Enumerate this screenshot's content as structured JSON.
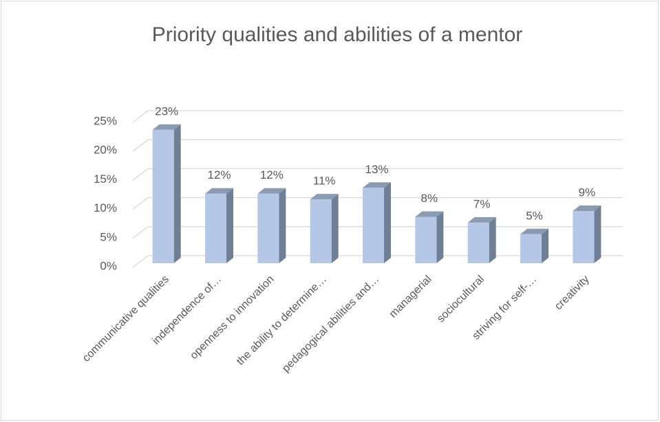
{
  "chart_data": {
    "type": "bar",
    "title": "Priority qualities and abilities of a mentor",
    "categories": [
      "communicative qualities",
      "independence of…",
      "openness to innovation",
      "the ability to determine…",
      "pedagogical abilities and…",
      "managerial",
      "sociocultural",
      "striving for self-…",
      "creativity"
    ],
    "values": [
      23,
      12,
      12,
      11,
      13,
      8,
      7,
      5,
      9
    ],
    "value_labels": [
      "23%",
      "12%",
      "12%",
      "11%",
      "13%",
      "8%",
      "7%",
      "5%",
      "9%"
    ],
    "color": "#b4c7e7",
    "ylim": [
      0,
      25
    ],
    "yticks": [
      {
        "value": 0,
        "label": "0%"
      },
      {
        "value": 5,
        "label": "5%"
      },
      {
        "value": 10,
        "label": "10%"
      },
      {
        "value": 15,
        "label": "15%"
      },
      {
        "value": 20,
        "label": "20%"
      },
      {
        "value": 25,
        "label": "25%"
      }
    ],
    "grid": true
  }
}
